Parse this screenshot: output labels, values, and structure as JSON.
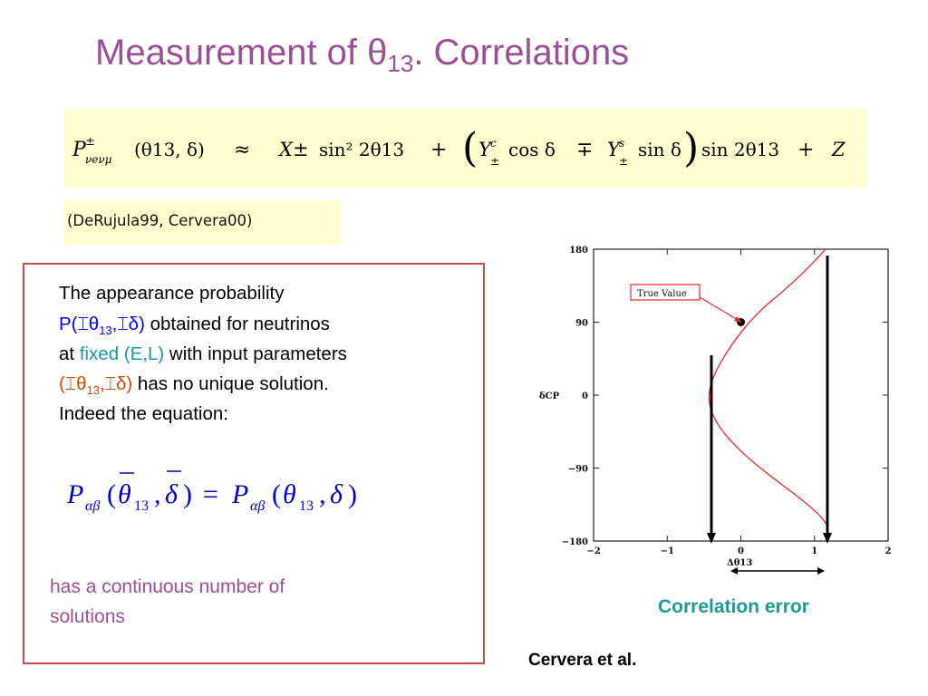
{
  "title": {
    "text": "Measurement of θ",
    "sub": "13",
    "rest": ". Correlations"
  },
  "formula": {
    "P": "P",
    "P_sup": "±",
    "P_sub": "νeνμ",
    "args": "(θ13, δ)",
    "approx": "≈",
    "X": "X±",
    "term1": "sin² 2θ13",
    "plus1": "+",
    "Yc": "Y",
    "Yc_sup": "c",
    "Yc_sub": "±",
    "cos": "cos δ",
    "mp": "∓",
    "Ys": "Y",
    "Ys_sup": "s",
    "Ys_sub": "±",
    "sin": "sin δ",
    "term2": "sin 2θ13",
    "plus2": "+",
    "Z": "Z"
  },
  "reference": "(DeRujula99,  Cervera00)",
  "description": {
    "line1": "The appearance probability",
    "line2_a": "P(",
    "line2_sym1": "⌶θ",
    "line2_sub": "13",
    "line2_comma": ",",
    "line2_sym2": "⌶δ)",
    "line2_b": " obtained for neutrinos",
    "line3_a": "at ",
    "line3_fixed": "fixed (E,L)",
    "line3_b": " with input parameters",
    "line4_a": "(⌶θ",
    "line4_sub": "13",
    "line4_b": ",⌶δ)",
    "line4_c": " has no unique solution.",
    "line5": "Indeed the equation:"
  },
  "equation": {
    "lhs_P": "P",
    "lhs_sub": "αβ",
    "lhs_args_open": "(",
    "theta_bar": "θ",
    "sub13a": "13",
    "comma1": ",",
    "delta_bar": "δ",
    "close1": ")",
    "eq": "=",
    "rhs_P": "P",
    "rhs_sub": "αβ",
    "open2": "(",
    "theta": "θ",
    "sub13b": "13",
    "comma2": ",",
    "delta": "δ",
    "close2": ")"
  },
  "continuous": {
    "line1": "has a continuous number of",
    "line2": "solutions"
  },
  "correlation_label": "Correlation error",
  "citation": "Cervera et al.",
  "chart_data": {
    "type": "line",
    "xlabel": "Δθ13",
    "ylabel": "δCP",
    "xlim": [
      -2,
      2
    ],
    "ylim": [
      -180,
      180
    ],
    "xticks": [
      "−2",
      "−1",
      "0",
      "1",
      "2"
    ],
    "yticks": [
      "180",
      "90",
      "0",
      "−90",
      "−180"
    ],
    "annotation": "True Value",
    "true_value": {
      "x": 0,
      "y": 90
    },
    "series": [
      {
        "color": "#e8262a",
        "x": [
          1.15,
          0.95,
          0.6,
          0.2,
          -0.15,
          -0.4,
          -0.45,
          -0.3,
          0.0,
          0.4,
          0.85,
          1.15,
          1.2,
          1.15
        ],
        "y": [
          180,
          160,
          130,
          100,
          60,
          20,
          -10,
          -40,
          -70,
          -100,
          -130,
          -155,
          -170,
          -180
        ]
      }
    ]
  }
}
